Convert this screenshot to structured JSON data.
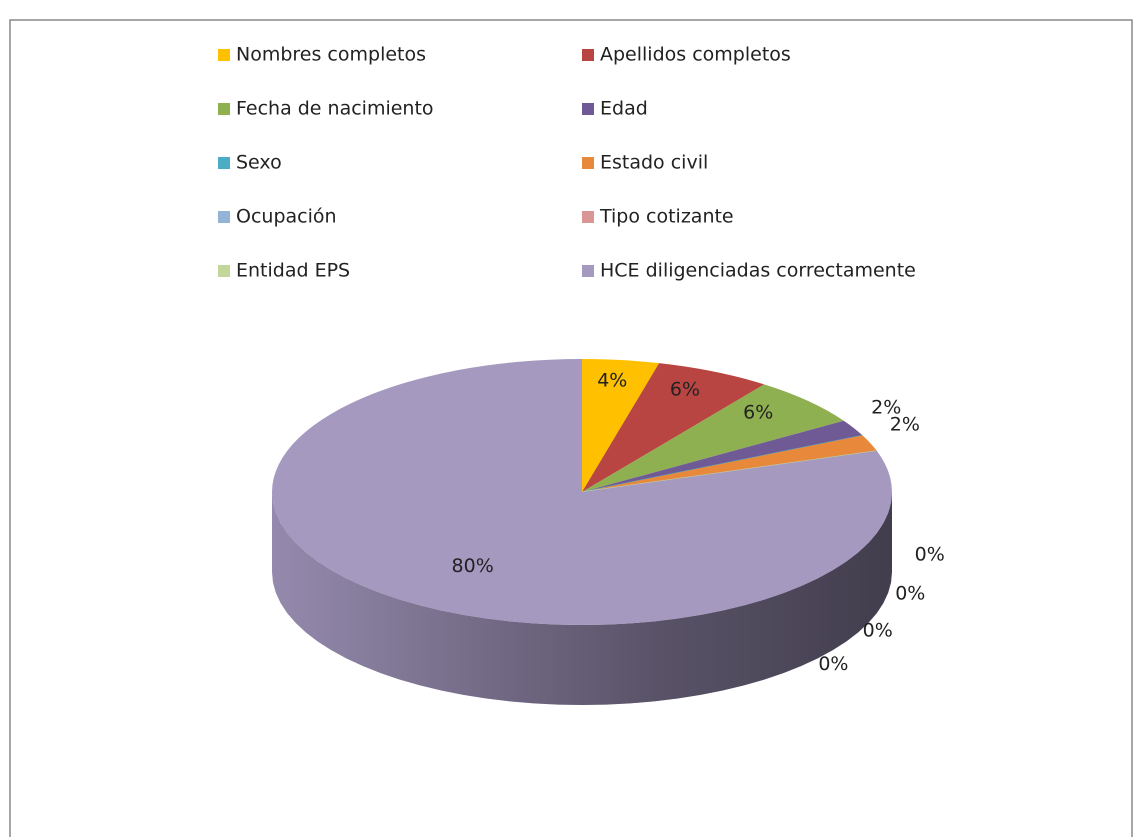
{
  "chart_data": {
    "type": "pie",
    "categories": [
      "Nombres completos",
      "Apellidos completos",
      "Fecha de nacimiento",
      "Edad",
      "Sexo",
      "Estado civil",
      "Ocupación",
      "Tipo cotizante",
      "Entidad EPS",
      "HCE diligenciadas correctamente"
    ],
    "values": [
      4,
      6,
      6,
      2,
      0,
      2,
      0,
      0,
      0,
      80
    ],
    "value_labels": [
      "4%",
      "6%",
      "6%",
      "2%",
      "0%",
      "2%",
      "0%",
      "0%",
      "0%",
      "80%"
    ],
    "colors": [
      "#ffc000",
      "#b94543",
      "#8fb050",
      "#6f5a96",
      "#4bacc6",
      "#e8883a",
      "#95b3d7",
      "#d99694",
      "#c3d69b",
      "#a599c0"
    ],
    "legend": "top"
  }
}
